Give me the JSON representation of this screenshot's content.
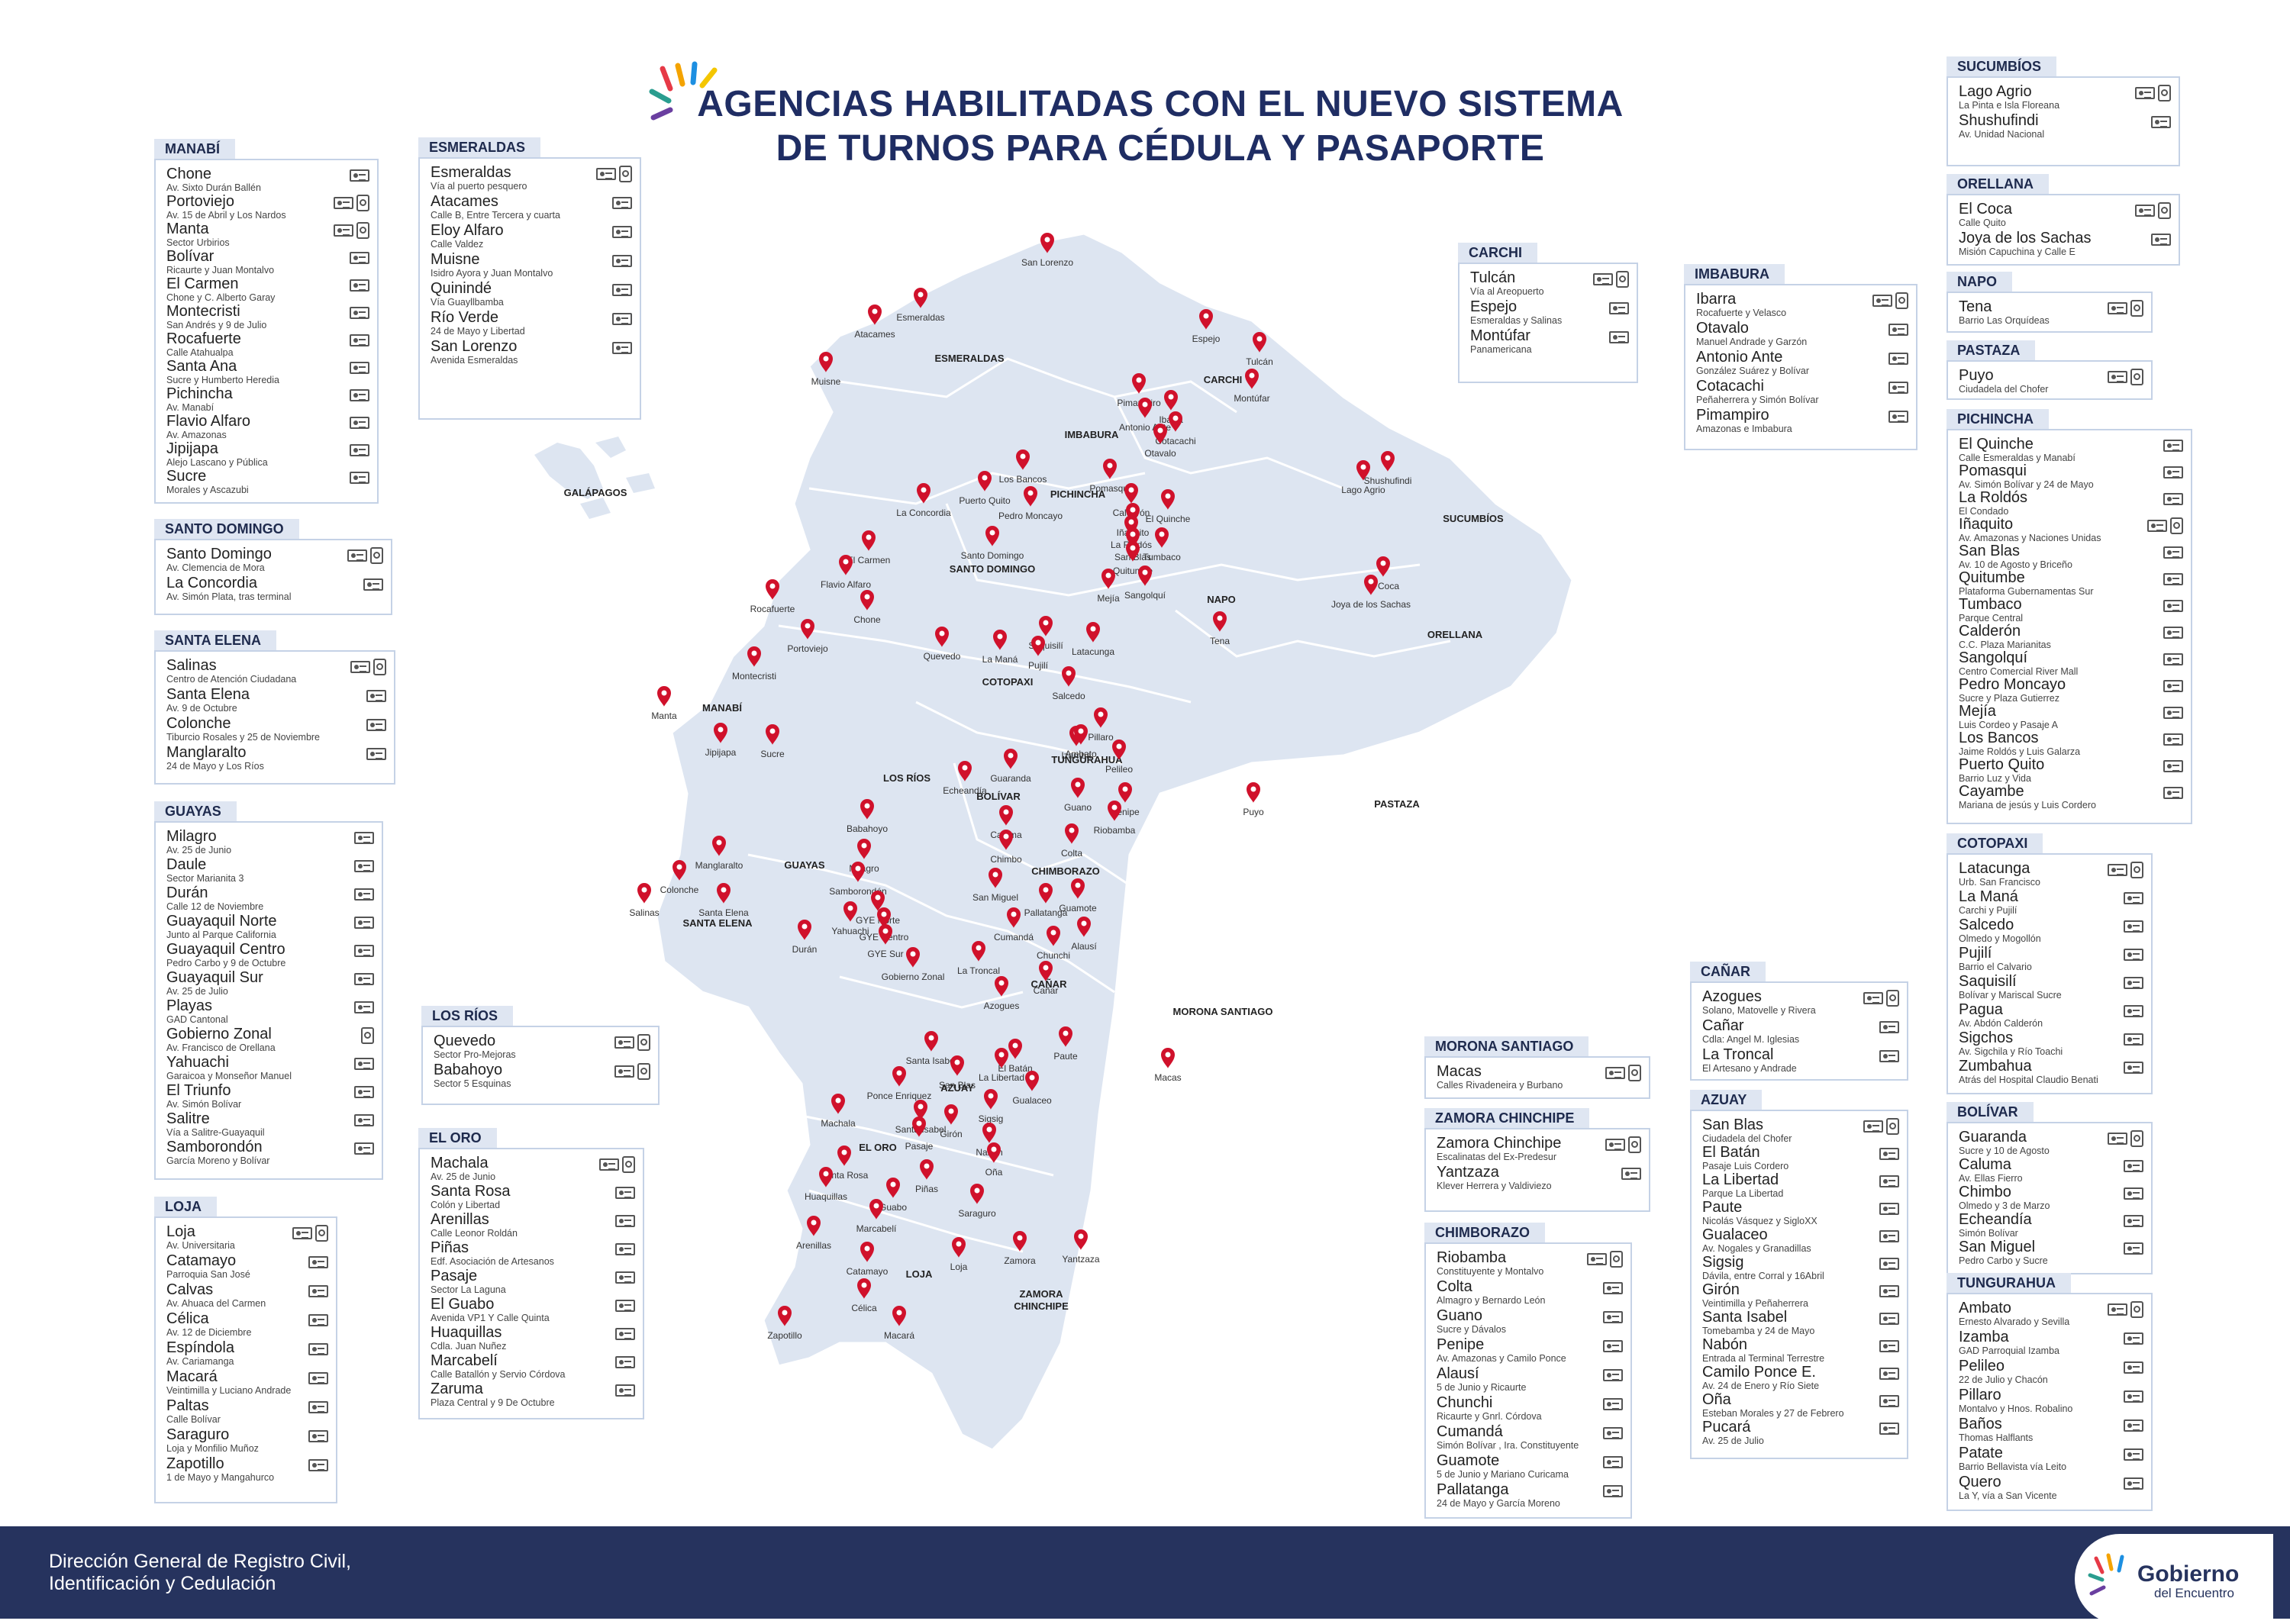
{
  "title": {
    "line1": "AGENCIAS HABILITADAS CON EL NUEVO SISTEMA",
    "line2": "DE TURNOS PARA CÉDULA Y PASAPORTE"
  },
  "footer": {
    "text": "Dirección General de Registro Civil,\nIdentificación y Cedulación",
    "logo_main": "Gobierno",
    "logo_sub": "del Encuentro"
  },
  "colors": {
    "marker": "#d0112b",
    "land": "#dde5f1",
    "panel_border": "#c5d2e6",
    "header_bg": "#dfe6f2",
    "footer_bg": "#26335e",
    "title": "#1f2d63"
  },
  "icons": {
    "id_card": "id-card-icon",
    "passport": "passport-icon",
    "marker": "location-pin-icon"
  },
  "provinces": [
    {
      "name": "MANABÍ",
      "items": [
        {
          "n": "Chone",
          "a": "Av. Sixto Durán Ballén",
          "pp": false
        },
        {
          "n": "Portoviejo",
          "a": "Av. 15 de Abril y Los Nardos",
          "pp": true
        },
        {
          "n": "Manta",
          "a": "Sector Urbirios",
          "pp": true
        },
        {
          "n": "Bolívar",
          "a": "Ricaurte y Juan Montalvo",
          "pp": false
        },
        {
          "n": "El Carmen",
          "a": "Chone y C. Alberto Garay",
          "pp": false
        },
        {
          "n": "Montecristi",
          "a": "San Andrés y 9 de Julio",
          "pp": false
        },
        {
          "n": "Rocafuerte",
          "a": "Calle Atahualpa",
          "pp": false
        },
        {
          "n": "Santa Ana",
          "a": "Sucre y Humberto Heredia",
          "pp": false
        },
        {
          "n": "Pichincha",
          "a": "Av. Manabí",
          "pp": false
        },
        {
          "n": "Flavio Alfaro",
          "a": "Av. Amazonas",
          "pp": false
        },
        {
          "n": "Jipijapa",
          "a": "Alejo Lascano y Pública",
          "pp": false
        },
        {
          "n": "Sucre",
          "a": "Morales y Ascazubi",
          "pp": false
        }
      ]
    },
    {
      "name": "SANTO DOMINGO",
      "items": [
        {
          "n": "Santo Domingo",
          "a": "Av. Clemencia de Mora",
          "pp": true
        },
        {
          "n": "La Concordia",
          "a": "Av. Simón Plata, tras terminal",
          "pp": false
        }
      ]
    },
    {
      "name": "SANTA ELENA",
      "items": [
        {
          "n": "Salinas",
          "a": "Centro de Atención Ciudadana",
          "pp": true
        },
        {
          "n": "Santa Elena",
          "a": "Av. 9 de Octubre",
          "pp": false
        },
        {
          "n": "Colonche",
          "a": "Tiburcio Rosales y 25 de Noviembre",
          "pp": false
        },
        {
          "n": "Manglaralto",
          "a": "24 de Mayo y Los Ríos",
          "pp": false
        }
      ]
    },
    {
      "name": "GUAYAS",
      "items": [
        {
          "n": "Milagro",
          "a": "Av. 25 de Junio",
          "pp": false
        },
        {
          "n": "Daule",
          "a": "Sector Marianita 3",
          "pp": false
        },
        {
          "n": "Durán",
          "a": "Calle 12 de Noviembre",
          "pp": false
        },
        {
          "n": "Guayaquil Norte",
          "a": "Junto al Parque California",
          "pp": false
        },
        {
          "n": "Guayaquil Centro",
          "a": "Pedro Carbo y 9 de Octubre",
          "pp": false
        },
        {
          "n": "Guayaquil Sur",
          "a": "Av. 25 de Julio",
          "pp": false
        },
        {
          "n": "Playas",
          "a": "GAD Cantonal",
          "pp": false
        },
        {
          "n": "Gobierno Zonal",
          "a": "Av. Francisco de Orellana",
          "pp": true,
          "onlypp": true
        },
        {
          "n": "Yahuachi",
          "a": "Garaicoa y Monseñor Manuel",
          "pp": false
        },
        {
          "n": "El Triunfo",
          "a": "Av. Simón Bolívar",
          "pp": false
        },
        {
          "n": "Salitre",
          "a": "Vía a Salitre-Guayaquil",
          "pp": false
        },
        {
          "n": "Samborondón",
          "a": "García Moreno y Bolívar",
          "pp": false
        }
      ]
    },
    {
      "name": "LOJA",
      "items": [
        {
          "n": "Loja",
          "a": "Av. Universitaria",
          "pp": true
        },
        {
          "n": "Catamayo",
          "a": "Parroquia San José",
          "pp": false
        },
        {
          "n": "Calvas",
          "a": "Av. Ahuaca del Carmen",
          "pp": false
        },
        {
          "n": "Célica",
          "a": "Av. 12 de Diciembre",
          "pp": false
        },
        {
          "n": "Espíndola",
          "a": "Av. Cariamanga",
          "pp": false
        },
        {
          "n": "Macará",
          "a": "Veintimilla y Luciano Andrade",
          "pp": false
        },
        {
          "n": "Paltas",
          "a": "Calle Bolívar",
          "pp": false
        },
        {
          "n": "Saraguro",
          "a": "Loja y Monfilio Muñoz",
          "pp": false
        },
        {
          "n": "Zapotillo",
          "a": "1 de Mayo y Mangahurco",
          "pp": false
        }
      ]
    },
    {
      "name": "ESMERALDAS",
      "items": [
        {
          "n": "Esmeraldas",
          "a": "Vía al puerto pesquero",
          "pp": true
        },
        {
          "n": "Atacames",
          "a": "Calle B, Entre Tercera y cuarta",
          "pp": false
        },
        {
          "n": "Eloy Alfaro",
          "a": "Calle Valdez",
          "pp": false
        },
        {
          "n": "Muisne",
          "a": "Isidro Ayora y Juan Montalvo",
          "pp": false
        },
        {
          "n": "Quinindé",
          "a": "Vía Guayllbamba",
          "pp": false
        },
        {
          "n": "Río Verde",
          "a": "24 de Mayo y Libertad",
          "pp": false
        },
        {
          "n": "San Lorenzo",
          "a": "Avenida Esmeraldas",
          "pp": false
        }
      ]
    },
    {
      "name": "LOS RÍOS",
      "items": [
        {
          "n": "Quevedo",
          "a": "Sector Pro-Mejoras",
          "pp": true
        },
        {
          "n": "Babahoyo",
          "a": "Sector 5 Esquinas",
          "pp": true
        }
      ]
    },
    {
      "name": "EL ORO",
      "items": [
        {
          "n": "Machala",
          "a": "Av. 25 de Junio",
          "pp": true
        },
        {
          "n": "Santa Rosa",
          "a": "Colón y Libertad",
          "pp": false
        },
        {
          "n": "Arenillas",
          "a": "Calle Leonor Roldán",
          "pp": false
        },
        {
          "n": "Piñas",
          "a": "Edf. Asociación de Artesanos",
          "pp": false
        },
        {
          "n": "Pasaje",
          "a": "Sector La Laguna",
          "pp": false
        },
        {
          "n": "El Guabo",
          "a": "Avenida VP1 Y Calle Quinta",
          "pp": false
        },
        {
          "n": "Huaquillas",
          "a": "Cdla. Juan Nuñez",
          "pp": false
        },
        {
          "n": "Marcabelí",
          "a": "Calle Batallón y Servio Córdova",
          "pp": false
        },
        {
          "n": "Zaruma",
          "a": "Plaza Central y 9 De Octubre",
          "pp": false
        }
      ]
    },
    {
      "name": "CARCHI",
      "items": [
        {
          "n": "Tulcán",
          "a": "Vía al Areopuerto",
          "pp": true
        },
        {
          "n": "Espejo",
          "a": "Esmeraldas y Salinas",
          "pp": false
        },
        {
          "n": "Montúfar",
          "a": "Panamericana",
          "pp": false
        }
      ]
    },
    {
      "name": "IMBABURA",
      "items": [
        {
          "n": "Ibarra",
          "a": "Rocafuerte y Velasco",
          "pp": true
        },
        {
          "n": "Otavalo",
          "a": "Manuel Andrade y Garzón",
          "pp": false
        },
        {
          "n": "Antonio Ante",
          "a": "González Suárez y Bolívar",
          "pp": false
        },
        {
          "n": "Cotacachi",
          "a": "Peñaherrera y Simón Bolívar",
          "pp": false
        },
        {
          "n": "Pimampiro",
          "a": "Amazonas e Imbabura",
          "pp": false
        }
      ]
    },
    {
      "name": "MORONA SANTIAGO",
      "items": [
        {
          "n": "Macas",
          "a": "Calles Rivadeneira y Burbano",
          "pp": true
        }
      ]
    },
    {
      "name": "ZAMORA CHINCHIPE",
      "items": [
        {
          "n": "Zamora Chinchipe",
          "a": "Escalinatas del Ex-Predesur",
          "pp": true
        },
        {
          "n": "Yantzaza",
          "a": "Klever Herrera y Valdiviezo",
          "pp": false
        }
      ]
    },
    {
      "name": "CHIMBORAZO",
      "items": [
        {
          "n": "Riobamba",
          "a": "Constituyente y Montalvo",
          "pp": true
        },
        {
          "n": "Colta",
          "a": "Almagro y Bernardo León",
          "pp": false
        },
        {
          "n": "Guano",
          "a": "Sucre y Dávalos",
          "pp": false
        },
        {
          "n": "Penipe",
          "a": "Av. Amazonas y Camilo Ponce",
          "pp": false
        },
        {
          "n": "Alausí",
          "a": "5 de Junio y Ricaurte",
          "pp": false
        },
        {
          "n": "Chunchi",
          "a": "Ricaurte y Gnrl. Córdova",
          "pp": false
        },
        {
          "n": "Cumandá",
          "a": "Simón Bolívar , Ira. Constituyente",
          "pp": false
        },
        {
          "n": "Guamote",
          "a": "5 de Junio y Mariano Curicama",
          "pp": false
        },
        {
          "n": "Pallatanga",
          "a": "24 de Mayo y García Moreno",
          "pp": false
        }
      ]
    },
    {
      "name": "CAÑAR",
      "items": [
        {
          "n": "Azogues",
          "a": "Solano, Matovelle y Rivera",
          "pp": true
        },
        {
          "n": "Cañar",
          "a": "Cdla: Angel M. Iglesias",
          "pp": false
        },
        {
          "n": "La Troncal",
          "a": "El Artesano y Andrade",
          "pp": false
        }
      ]
    },
    {
      "name": "AZUAY",
      "items": [
        {
          "n": "San Blas",
          "a": "Ciudadela del Chofer",
          "pp": true
        },
        {
          "n": "El Batán",
          "a": "Pasaje Luis Cordero",
          "pp": false
        },
        {
          "n": "La Libertad",
          "a": "Parque La Libertad",
          "pp": false
        },
        {
          "n": "Paute",
          "a": "Nicolás Vásquez y SigloXX",
          "pp": false
        },
        {
          "n": "Gualaceo",
          "a": "Av. Nogales y Granadillas",
          "pp": false
        },
        {
          "n": "Sigsig",
          "a": "Dávila, entre Corral y 16Abril",
          "pp": false
        },
        {
          "n": "Girón",
          "a": "Veintimilla y Peñaherrera",
          "pp": false
        },
        {
          "n": "Santa Isabel",
          "a": "Tomebamba y 24 de Mayo",
          "pp": false
        },
        {
          "n": "Nabón",
          "a": "Entrada al Terminal Terrestre",
          "pp": false
        },
        {
          "n": "Camilo Ponce E.",
          "a": "Av. 24 de Enero y Río Siete",
          "pp": false
        },
        {
          "n": "Oña",
          "a": "Esteban Morales y 27 de Febrero",
          "pp": false
        },
        {
          "n": "Pucará",
          "a": "Av. 25 de Julio",
          "pp": false
        }
      ]
    },
    {
      "name": "SUCUMBÍOS",
      "items": [
        {
          "n": "Lago Agrio",
          "a": "La Pinta e Isla Floreana",
          "pp": true
        },
        {
          "n": "Shushufindi",
          "a": "Av. Unidad Nacional",
          "pp": false
        }
      ]
    },
    {
      "name": "ORELLANA",
      "items": [
        {
          "n": "El Coca",
          "a": "Calle Quito",
          "pp": true
        },
        {
          "n": "Joya de los Sachas",
          "a": "Misión Capuchina y Calle E",
          "pp": false
        }
      ]
    },
    {
      "name": "NAPO",
      "items": [
        {
          "n": "Tena",
          "a": "Barrio Las Orquídeas",
          "pp": true
        }
      ]
    },
    {
      "name": "PASTAZA",
      "items": [
        {
          "n": "Puyo",
          "a": "Ciudadela del Chofer",
          "pp": true
        }
      ]
    },
    {
      "name": "PICHINCHA",
      "items": [
        {
          "n": "El Quinche",
          "a": "Calle Esmeraldas y Manabí",
          "pp": false
        },
        {
          "n": "Pomasqui",
          "a": "Av. Simón Bolívar y 24 de Mayo",
          "pp": false
        },
        {
          "n": "La Roldós",
          "a": "El Condado",
          "pp": false
        },
        {
          "n": "Iñaquito",
          "a": "Av. Amazonas y Naciones Unidas",
          "pp": true
        },
        {
          "n": "San Blas",
          "a": "Av. 10 de Agosto y Briceño",
          "pp": false
        },
        {
          "n": "Quitumbe",
          "a": "Plataforma Gubernamentas Sur",
          "pp": false
        },
        {
          "n": "Tumbaco",
          "a": "Parque Central",
          "pp": false
        },
        {
          "n": "Calderón",
          "a": "C.C. Plaza Marianitas",
          "pp": false
        },
        {
          "n": "Sangolquí",
          "a": "Centro Comercial River Mall",
          "pp": false
        },
        {
          "n": "Pedro Moncayo",
          "a": "Sucre y Plaza Gutierrez",
          "pp": false
        },
        {
          "n": "Mejía",
          "a": "Luis Cordeo y Pasaje A",
          "pp": false
        },
        {
          "n": "Los Bancos",
          "a": "Jaime Roldós y Luis Galarza",
          "pp": false
        },
        {
          "n": "Puerto Quito",
          "a": "Barrio Luz y Vida",
          "pp": false
        },
        {
          "n": "Cayambe",
          "a": "Mariana de jesús y Luis Cordero",
          "pp": false
        }
      ]
    },
    {
      "name": "COTOPAXI",
      "items": [
        {
          "n": "Latacunga",
          "a": "Urb. San Francisco",
          "pp": true
        },
        {
          "n": "La Maná",
          "a": "Carchi y Pujilí",
          "pp": false
        },
        {
          "n": "Salcedo",
          "a": "Olmedo y Mogollón",
          "pp": false
        },
        {
          "n": "Pujilí",
          "a": "Barrio el Calvario",
          "pp": false
        },
        {
          "n": "Saquisilí",
          "a": "Bolívar y Mariscal Sucre",
          "pp": false
        },
        {
          "n": "Pagua",
          "a": "Av. Abdón Calderón",
          "pp": false
        },
        {
          "n": "Sigchos",
          "a": "Av. Sigchila y Río Toachi",
          "pp": false
        },
        {
          "n": "Zumbahua",
          "a": "Atrás del Hospital Claudio Benati",
          "pp": false
        }
      ]
    },
    {
      "name": "BOLÍVAR",
      "items": [
        {
          "n": "Guaranda",
          "a": "Sucre y 10 de Agosto",
          "pp": true
        },
        {
          "n": "Caluma",
          "a": "Av. Ellas Fierro",
          "pp": false
        },
        {
          "n": "Chimbo",
          "a": "Olmedo y 3 de Marzo",
          "pp": false
        },
        {
          "n": "Echeandía",
          "a": "Simón Bolívar",
          "pp": false
        },
        {
          "n": "San Miguel",
          "a": "Pedro Carbo y Sucre",
          "pp": false
        }
      ]
    },
    {
      "name": "TUNGURAHUA",
      "items": [
        {
          "n": "Ambato",
          "a": "Ernesto Alvarado y Sevilla",
          "pp": true
        },
        {
          "n": "Izamba",
          "a": "GAD Parroquial Izamba",
          "pp": false
        },
        {
          "n": "Pelileo",
          "a": "22 de Julio y Chacón",
          "pp": false
        },
        {
          "n": "Pillaro",
          "a": "Montalvo y Hnos. Robalino",
          "pp": false
        },
        {
          "n": "Baños",
          "a": "Thomas Halflants",
          "pp": false
        },
        {
          "n": "Patate",
          "a": "Barrio Bellavista vía Leito",
          "pp": false
        },
        {
          "n": "Quero",
          "a": "La Y, vía a San Vicente",
          "pp": false
        }
      ]
    }
  ],
  "map": {
    "region_labels": [
      "ESMERALDAS",
      "CARCHI",
      "IMBABURA",
      "PICHINCHA",
      "SANTO DOMINGO",
      "MANABÍ",
      "COTOPAXI",
      "NAPO",
      "SUCUMBÍOS",
      "ORELLANA",
      "TUNGURAHUA",
      "LOS RÍOS",
      "BOLÍVAR",
      "PASTAZA",
      "GUAYAS",
      "SANTA ELENA",
      "CHIMBORAZO",
      "CAÑAR",
      "MORONA SANTIAGO",
      "AZUAY",
      "EL ORO",
      "LOJA",
      "ZAMORA CHINCHIPE",
      "GALÁPAGOS"
    ],
    "city_labels": [
      "San Lorenzo",
      "Atacames",
      "Esmeraldas",
      "Muisne",
      "Espejo",
      "Tulcán",
      "Montúfar",
      "Pimampiro",
      "Antonio Ante",
      "Ibarra",
      "Cotacachi",
      "Otavalo",
      "Puerto Quito",
      "Los Bancos",
      "Pedro Moncayo",
      "Pomasqui",
      "Calderón",
      "La Concordia",
      "El Quinche",
      "Iñaquito",
      "La Roldós",
      "San Blas",
      "Quitumbe",
      "Tumbaco",
      "Santo Domingo",
      "Mejía",
      "Sangolquí",
      "Lago Agrio",
      "Shushufindi",
      "El Carmen",
      "Flavio Alfaro",
      "Chone",
      "El Coca",
      "Joya de los Sachas",
      "Tena",
      "Rocafuerte",
      "Portoviejo",
      "Saquisilí",
      "Quevedo",
      "La Maná",
      "Pujilí",
      "Latacunga",
      "Salcedo",
      "Montecristi",
      "Manta",
      "Jipijapa",
      "Sucre",
      "Pillaro",
      "Izamba",
      "Ambato",
      "Pelileo",
      "Echeandía",
      "Guaranda",
      "Guano",
      "Penipe",
      "Riobamba",
      "Puyo",
      "Babahoyo",
      "Caluma",
      "Colta",
      "Manglaralto",
      "Chimbo",
      "Colonche",
      "Milagro",
      "Santa Elena",
      "San Miguel",
      "Samborondón",
      "Salinas",
      "Yahuachi",
      "GYE Norte",
      "GYE Centro",
      "Pallatanga",
      "Guamote",
      "Cumandá",
      "Alausí",
      "Durán",
      "GYE Sur",
      "Chunchi",
      "La Troncal",
      "Gobierno Zonal",
      "Azogues",
      "Cañar",
      "Santa Isabel",
      "El Batán",
      "La Libertad",
      "Paute",
      "Macas",
      "Ponce Enriquez",
      "San Blas",
      "Gualaceo",
      "Machala",
      "Santa Isabel",
      "Sigsig",
      "Pasaje",
      "Girón",
      "Nabón",
      "Santa Rosa",
      "Piñas",
      "Oña",
      "Huaquillas",
      "Guabo",
      "Saraguro",
      "Marcabelí",
      "Arenillas",
      "Zamora",
      "Yantzaza",
      "Catamayo",
      "Loja",
      "Célica",
      "Zapotillo",
      "Macará"
    ]
  }
}
